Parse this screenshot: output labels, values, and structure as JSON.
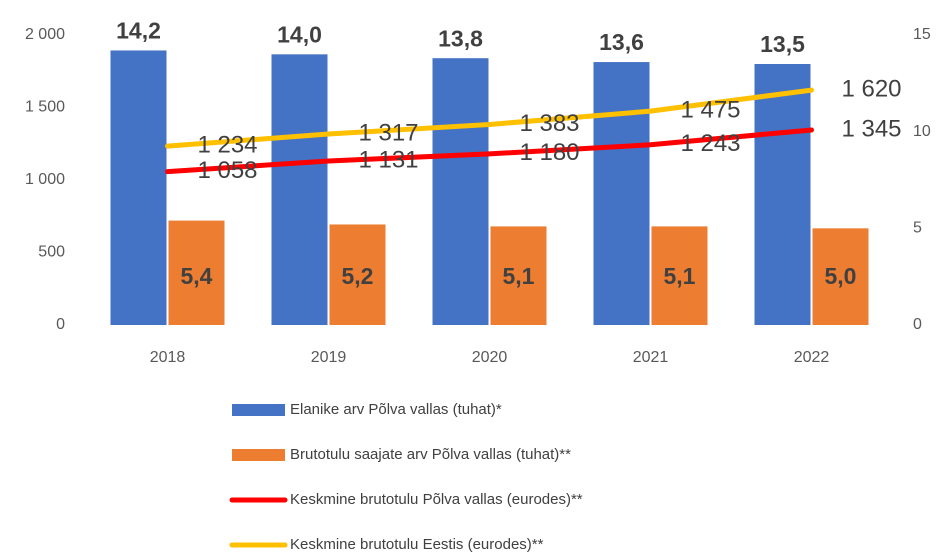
{
  "chart_data": {
    "type": "combo",
    "categories": [
      "2018",
      "2019",
      "2020",
      "2021",
      "2022"
    ],
    "ylim": [
      0,
      2000
    ],
    "yticks": [
      0,
      500,
      {
        "value": 1000,
        "label": "1 000"
      },
      {
        "value": 1500,
        "label": "1 500"
      },
      {
        "value": 2000,
        "label": "2 000"
      }
    ],
    "y2lim": [
      0,
      15
    ],
    "y2ticks": [
      0,
      5,
      10,
      15
    ],
    "series": [
      {
        "name": "Elanike arv Põlva vallas (tuhat)*",
        "type": "bar",
        "axis": "y2",
        "color": "#4472c4",
        "values": [
          14.2,
          14.0,
          13.8,
          13.6,
          13.5
        ],
        "value_labels": [
          "14,2",
          "14,0",
          "13,8",
          "13,6",
          "13,5"
        ]
      },
      {
        "name": "Brutotulu saajate arv Põlva vallas (tuhat)**",
        "type": "bar",
        "axis": "y2",
        "color": "#ed7d31",
        "values": [
          5.4,
          5.2,
          5.1,
          5.1,
          5.0
        ],
        "value_labels": [
          "5,4",
          "5,2",
          "5,1",
          "5,1",
          "5,0"
        ]
      },
      {
        "name": "Keskmine brutotulu Põlva vallas (eurodes)**",
        "type": "line",
        "axis": "y",
        "color": "#ff0000",
        "values": [
          1058,
          1131,
          1180,
          1243,
          1345
        ],
        "value_labels": [
          "1 058",
          "1 131",
          "1 180",
          "1 243",
          "1 345"
        ]
      },
      {
        "name": "Keskmine brutotulu Eestis (eurodes)**",
        "type": "line",
        "axis": "y",
        "color": "#ffc000",
        "values": [
          1234,
          1317,
          1383,
          1475,
          1620
        ],
        "value_labels": [
          "1 234",
          "1 317",
          "1 383",
          "1 475",
          "1 620"
        ]
      }
    ]
  }
}
